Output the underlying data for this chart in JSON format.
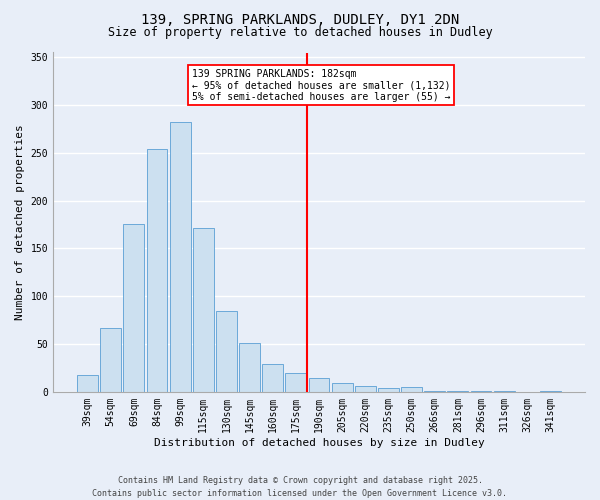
{
  "title_line1": "139, SPRING PARKLANDS, DUDLEY, DY1 2DN",
  "title_line2": "Size of property relative to detached houses in Dudley",
  "xlabel": "Distribution of detached houses by size in Dudley",
  "ylabel": "Number of detached properties",
  "categories": [
    "39sqm",
    "54sqm",
    "69sqm",
    "84sqm",
    "99sqm",
    "115sqm",
    "130sqm",
    "145sqm",
    "160sqm",
    "175sqm",
    "190sqm",
    "205sqm",
    "220sqm",
    "235sqm",
    "250sqm",
    "266sqm",
    "281sqm",
    "296sqm",
    "311sqm",
    "326sqm",
    "341sqm"
  ],
  "bar_heights": [
    18,
    67,
    176,
    254,
    282,
    171,
    85,
    51,
    29,
    20,
    14,
    9,
    6,
    4,
    5,
    1,
    1,
    1,
    1,
    0,
    1
  ],
  "bar_color": "#cce0f0",
  "bar_edge_color": "#5a9fd4",
  "background_color": "#e8eef8",
  "grid_color": "#ffffff",
  "vline_color": "red",
  "annotation_text": "139 SPRING PARKLANDS: 182sqm\n← 95% of detached houses are smaller (1,132)\n5% of semi-detached houses are larger (55) →",
  "ylim": [
    0,
    355
  ],
  "yticks": [
    0,
    50,
    100,
    150,
    200,
    250,
    300,
    350
  ],
  "footnote": "Contains HM Land Registry data © Crown copyright and database right 2025.\nContains public sector information licensed under the Open Government Licence v3.0.",
  "title_fontsize": 10,
  "subtitle_fontsize": 8.5,
  "ylabel_fontsize": 8,
  "xlabel_fontsize": 8,
  "tick_fontsize": 7,
  "annot_fontsize": 7,
  "footnote_fontsize": 6
}
